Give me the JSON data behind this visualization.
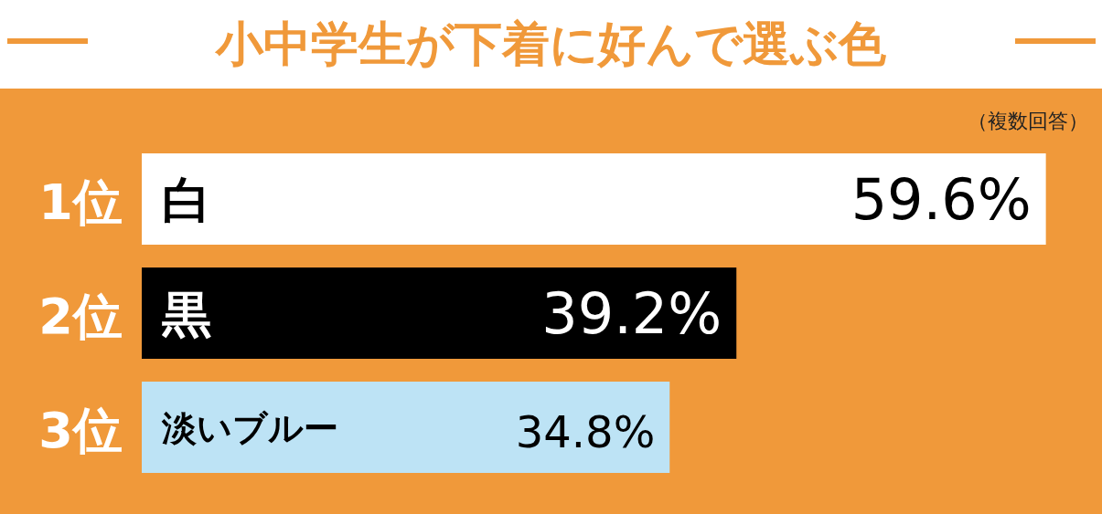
{
  "chart_data": {
    "type": "bar",
    "orientation": "horizontal",
    "title": "小中学生が下着に好んで選ぶ色",
    "subtitle": "（複数回答）",
    "categories": [
      "白",
      "黒",
      "淡いブルー"
    ],
    "values": [
      59.6,
      39.2,
      34.8
    ],
    "colors": [
      "#ffffff",
      "#000000",
      "#bde3f5"
    ],
    "value_labels": [
      "59.6%",
      "39.2%",
      "34.8%"
    ],
    "xlim": [
      0,
      63.3
    ],
    "annotations": [
      "1位",
      "2位",
      "3位"
    ]
  }
}
